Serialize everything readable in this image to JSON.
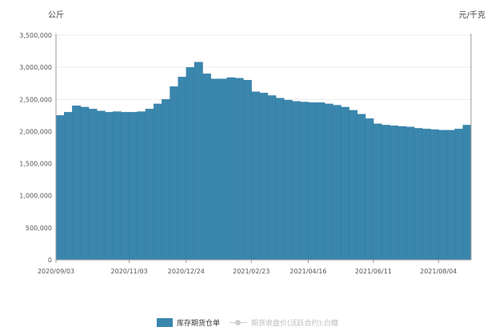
{
  "units": {
    "left": "公斤",
    "right": "元/千克"
  },
  "legend": [
    {
      "label": "库存期货仓单",
      "color": "#3a86ad"
    },
    {
      "label": "期货收盘价(活跃合约):白糖",
      "color": "#cfcfcf"
    }
  ],
  "chart_data": {
    "type": "area",
    "ylim": [
      0,
      3500000
    ],
    "yticks": [
      "0",
      "500,000",
      "1,000,000",
      "1,500,000",
      "2,000,000",
      "2,500,000",
      "3,000,000",
      "3,500,000"
    ],
    "xticks": [
      "2020/09/03",
      "2020/11/03",
      "2020/12/24",
      "2021/02/23",
      "2021/04/16",
      "2021/06/11",
      "2021/08/04"
    ],
    "x": [
      "2020/09/03",
      "2020/09/10",
      "2020/09/17",
      "2020/09/24",
      "2020/10/01",
      "2020/10/08",
      "2020/10/15",
      "2020/10/22",
      "2020/10/29",
      "2020/11/03",
      "2020/11/10",
      "2020/11/17",
      "2020/11/24",
      "2020/12/01",
      "2020/12/08",
      "2020/12/15",
      "2020/12/24",
      "2020/12/31",
      "2021/01/07",
      "2021/01/14",
      "2021/01/21",
      "2021/01/28",
      "2021/02/04",
      "2021/02/11",
      "2021/02/23",
      "2021/03/02",
      "2021/03/09",
      "2021/03/16",
      "2021/03/23",
      "2021/03/30",
      "2021/04/06",
      "2021/04/16",
      "2021/04/23",
      "2021/04/30",
      "2021/05/07",
      "2021/05/14",
      "2021/05/21",
      "2021/05/28",
      "2021/06/04",
      "2021/06/11",
      "2021/06/18",
      "2021/06/25",
      "2021/07/02",
      "2021/07/09",
      "2021/07/16",
      "2021/07/23",
      "2021/07/30",
      "2021/08/04",
      "2021/08/11",
      "2021/08/18",
      "2021/08/25"
    ],
    "series": [
      {
        "name": "库存期货仓单",
        "color": "#3a86ad",
        "values": [
          2250000,
          2300000,
          2400000,
          2380000,
          2350000,
          2320000,
          2300000,
          2310000,
          2300000,
          2300000,
          2310000,
          2350000,
          2430000,
          2500000,
          2700000,
          2850000,
          3000000,
          3080000,
          2900000,
          2820000,
          2820000,
          2840000,
          2830000,
          2800000,
          2620000,
          2600000,
          2560000,
          2520000,
          2490000,
          2470000,
          2460000,
          2450000,
          2450000,
          2430000,
          2410000,
          2380000,
          2330000,
          2270000,
          2200000,
          2120000,
          2100000,
          2090000,
          2080000,
          2070000,
          2050000,
          2040000,
          2030000,
          2020000,
          2020000,
          2040000,
          2100000
        ]
      }
    ]
  }
}
